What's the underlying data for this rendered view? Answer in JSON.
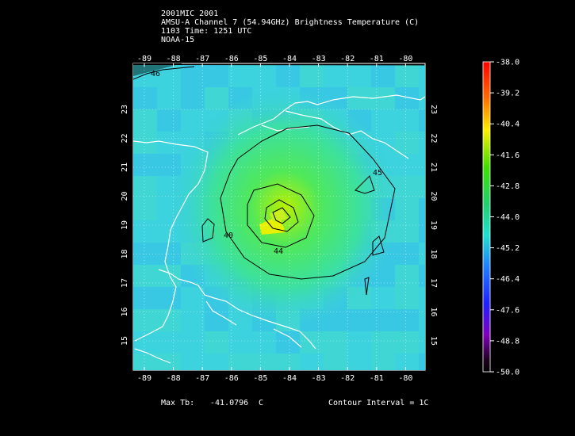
{
  "header": {
    "line1": "2001MIC 2001",
    "line2": "AMSU-A Channel 7 (54.94GHz) Brightness Temperature (C)",
    "line3": "1103 Time: 1251 UTC",
    "line4": "NOAA-15"
  },
  "axes": {
    "lon_labels": [
      "-89",
      "-88",
      "-87",
      "-86",
      "-85",
      "-84",
      "-83",
      "-82",
      "-81",
      "-80"
    ],
    "lat_labels": [
      "15",
      "16",
      "17",
      "18",
      "19",
      "20",
      "21",
      "22",
      "23"
    ]
  },
  "colorbar": {
    "labels": [
      "-38.0",
      "-39.2",
      "-40.4",
      "-41.6",
      "-42.8",
      "-44.0",
      "-45.2",
      "-46.4",
      "-47.6",
      "-48.8",
      "-50.0"
    ]
  },
  "contour_labels": [
    "46",
    "45",
    "40",
    "44",
    "40"
  ],
  "footer": {
    "max_label": "Max Tb:",
    "max_value": "-41.0796",
    "max_unit": "C",
    "interval": "Contour Interval = 1C"
  },
  "colors": {
    "background": "#000000",
    "field_cool": "#3cd0e0",
    "field_warm": "#33e07a",
    "field_max": "#f0f000"
  }
}
